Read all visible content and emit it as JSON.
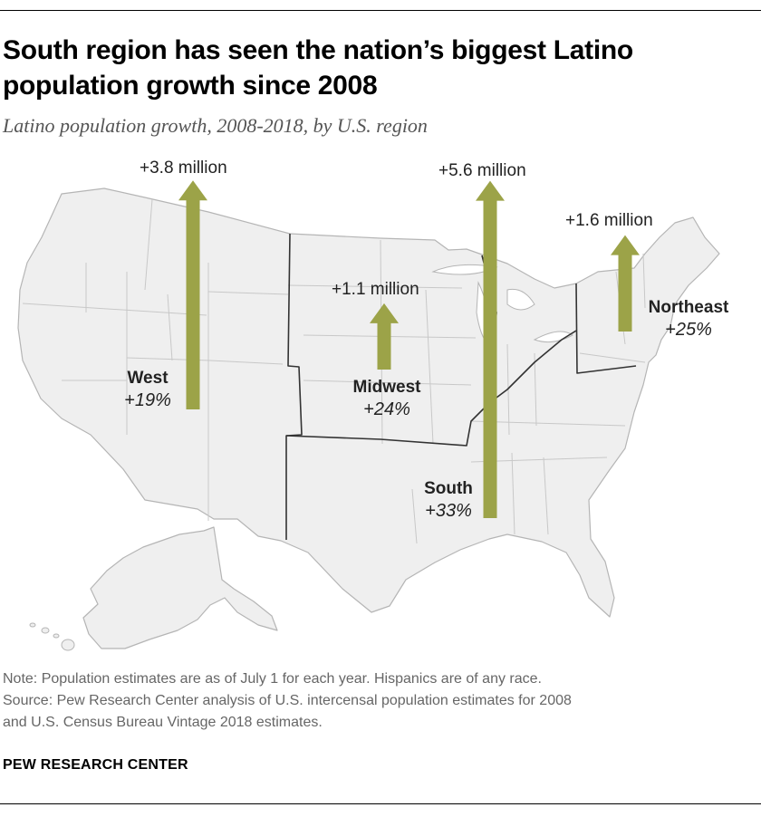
{
  "title": "South region has seen the nation’s biggest Latino population growth since 2008",
  "subtitle": "Latino population growth, 2008-2018, by U.S. region",
  "colors": {
    "arrow": "#9ca348",
    "land": "#efefef",
    "state_border": "#c8c8c8",
    "region_border": "#333333"
  },
  "regions": [
    {
      "id": "west",
      "name": "West",
      "growth_pct": "+19%",
      "increase": "+3.8 million",
      "increase_millions": 3.8
    },
    {
      "id": "midwest",
      "name": "Midwest",
      "growth_pct": "+24%",
      "increase": "+1.1 million",
      "increase_millions": 1.1
    },
    {
      "id": "south",
      "name": "South",
      "growth_pct": "+33%",
      "increase": "+5.6 million",
      "increase_millions": 5.6
    },
    {
      "id": "northeast",
      "name": "Northeast",
      "growth_pct": "+25%",
      "increase": "+1.6 million",
      "increase_millions": 1.6
    }
  ],
  "note": "Note: Population estimates are as of July 1 for each year. Hispanics are of any race.",
  "source_line1": "Source: Pew Research Center analysis of U.S. intercensal population estimates for 2008",
  "source_line2": "and U.S. Census Bureau Vintage 2018 estimates.",
  "brand": "PEW RESEARCH CENTER"
}
